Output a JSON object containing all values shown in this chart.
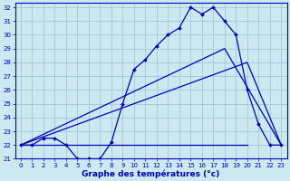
{
  "title": "Graphe des températures (°c)",
  "bg_color": "#cce8f0",
  "grid_color": "#a0c8d8",
  "line_color": "#0000bb",
  "xlim": [
    -0.5,
    23.5
  ],
  "ylim": [
    21,
    32.3
  ],
  "xticks": [
    0,
    1,
    2,
    3,
    4,
    5,
    6,
    7,
    8,
    9,
    10,
    11,
    12,
    13,
    14,
    15,
    16,
    17,
    18,
    19,
    20,
    21,
    22,
    23
  ],
  "yticks": [
    21,
    22,
    23,
    24,
    25,
    26,
    27,
    28,
    29,
    30,
    31,
    32
  ],
  "series1_x": [
    0,
    1,
    2,
    3,
    4,
    5,
    6,
    7,
    8,
    9,
    10,
    11,
    12,
    13,
    14,
    15,
    16,
    17,
    18,
    19,
    20,
    21,
    22,
    23
  ],
  "series1_y": [
    22,
    22,
    22.5,
    22.5,
    22,
    21,
    21,
    21,
    22.2,
    25,
    27.5,
    28.2,
    29.2,
    30,
    30.5,
    32,
    31.5,
    32,
    31,
    30,
    26,
    23.5,
    22,
    22
  ],
  "series2_x": [
    0,
    20,
    23
  ],
  "series2_y": [
    22,
    28,
    22
  ],
  "series3_x": [
    0,
    18,
    23
  ],
  "series3_y": [
    22,
    29,
    22
  ],
  "series4_x": [
    0,
    20
  ],
  "series4_y": [
    22,
    22
  ],
  "marker": "D",
  "markersize": 2.0,
  "linewidth": 0.9,
  "tick_labelsize": 5.0,
  "xlabel_fontsize": 6.5
}
